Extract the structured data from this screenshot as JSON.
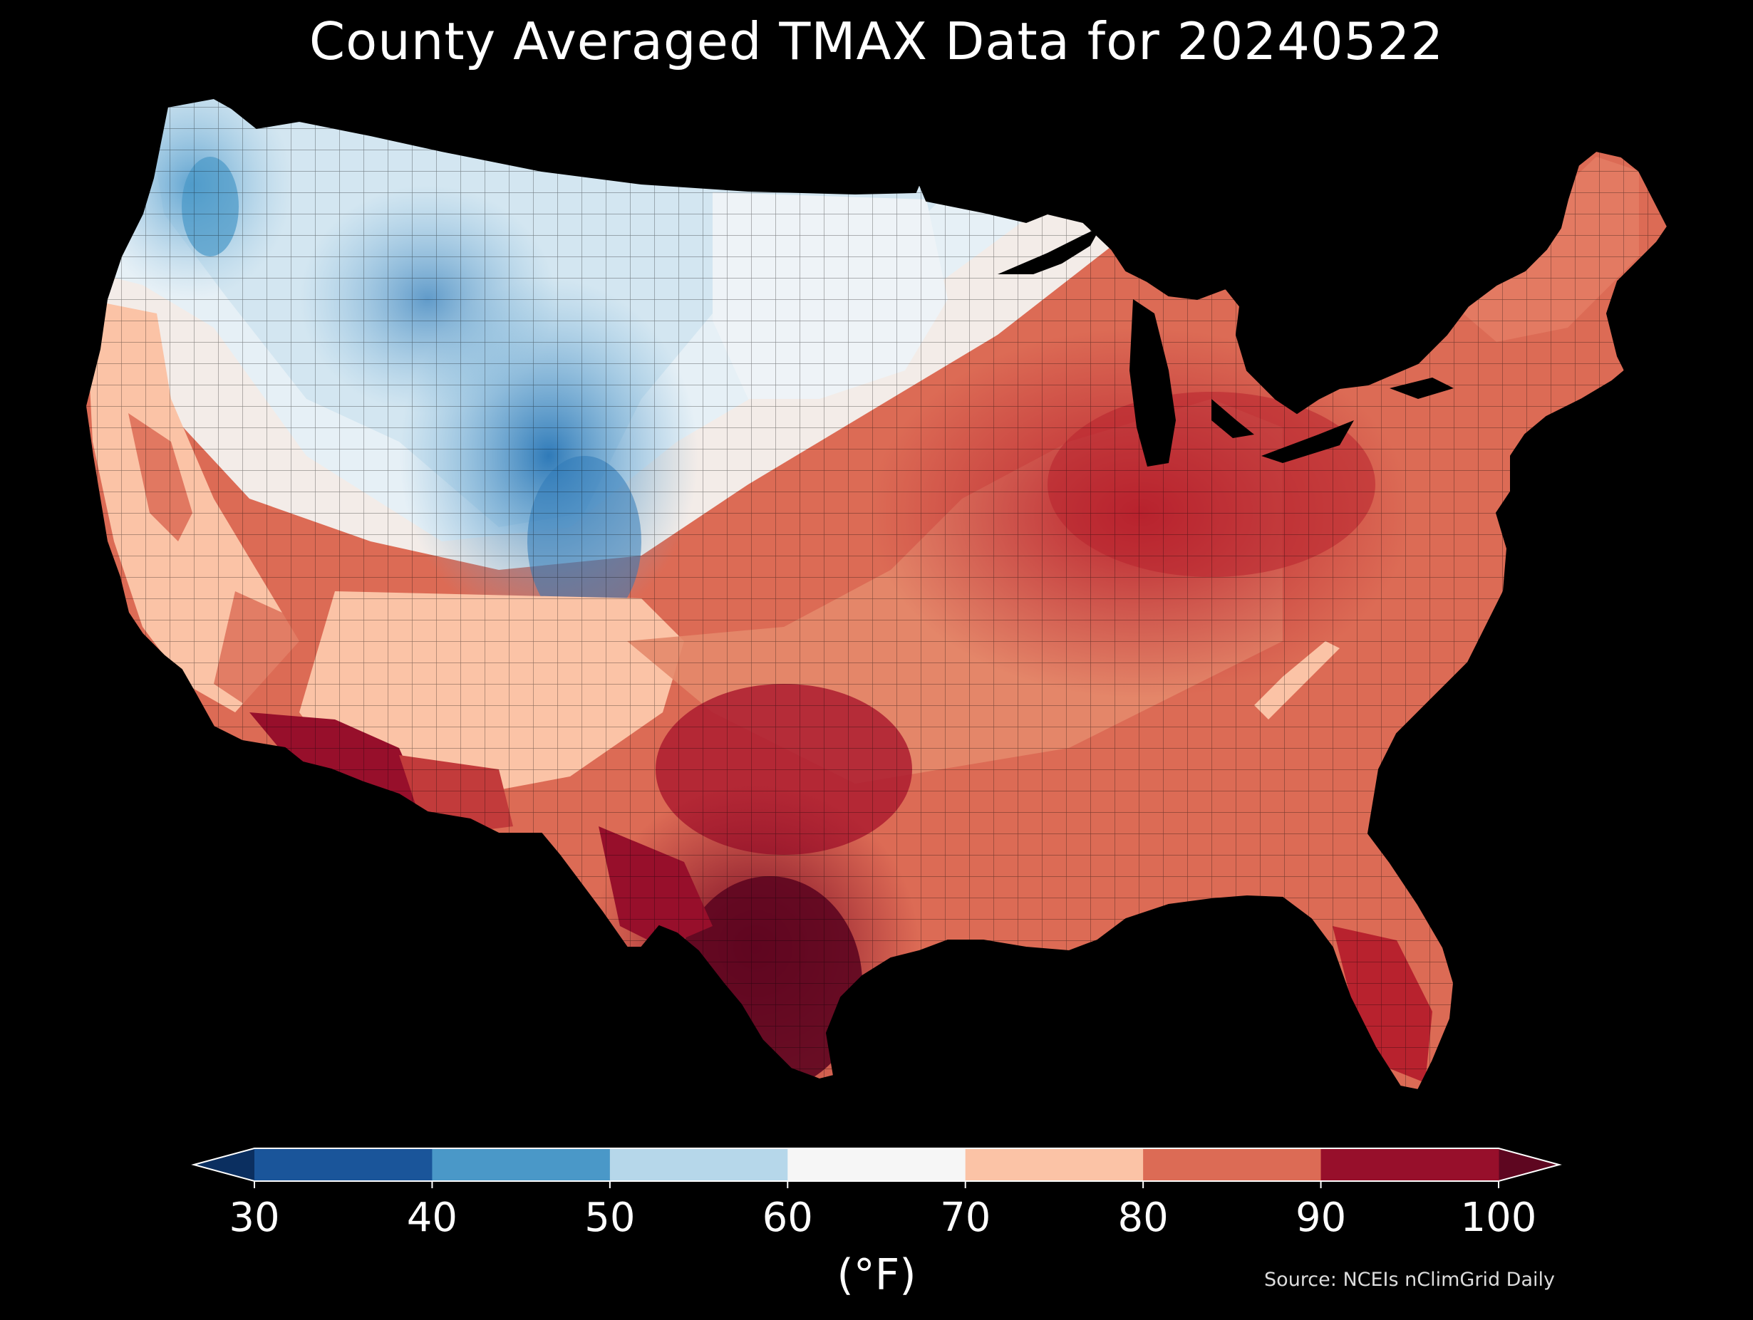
{
  "title": "County Averaged TMAX Data for 20240522",
  "source": "Source: NCEIs nClimGrid Daily",
  "colorbar": {
    "unit_label": "(°F)",
    "ticks": [
      "30",
      "40",
      "50",
      "60",
      "70",
      "80",
      "90",
      "100"
    ],
    "bins": [
      {
        "range": [
          30,
          40
        ],
        "color": "#1a559a"
      },
      {
        "range": [
          40,
          50
        ],
        "color": "#4a98c8"
      },
      {
        "range": [
          50,
          60
        ],
        "color": "#b6d7ea"
      },
      {
        "range": [
          60,
          70
        ],
        "color": "#f6f6f6"
      },
      {
        "range": [
          70,
          80
        ],
        "color": "#fbc3a6"
      },
      {
        "range": [
          80,
          90
        ],
        "color": "#dc6b55"
      },
      {
        "range": [
          90,
          100
        ],
        "color": "#970f2b"
      }
    ],
    "under_color": "#0b2f60",
    "over_color": "#5e0620"
  },
  "map": {
    "region": "Contiguous United States",
    "variable": "TMAX",
    "date": "20240522",
    "background": "#000000",
    "regional_pattern": [
      {
        "region": "Pacific Northwest",
        "tmax_range_F": [
          45,
          60
        ]
      },
      {
        "region": "Northern Rockies / Wyoming / Colorado",
        "tmax_range_F": [
          40,
          55
        ]
      },
      {
        "region": "Northern Plains / Upper Midwest",
        "tmax_range_F": [
          55,
          70
        ]
      },
      {
        "region": "California Central Valley",
        "tmax_range_F": [
          80,
          90
        ]
      },
      {
        "region": "Desert Southwest",
        "tmax_range_F": [
          90,
          100
        ]
      },
      {
        "region": "South Texas",
        "tmax_range_F": [
          95,
          105
        ]
      },
      {
        "region": "Ohio Valley / Midwest",
        "tmax_range_F": [
          85,
          90
        ]
      },
      {
        "region": "Southeast",
        "tmax_range_F": [
          80,
          90
        ]
      },
      {
        "region": "Northeast / New England",
        "tmax_range_F": [
          75,
          85
        ]
      },
      {
        "region": "South Florida",
        "tmax_range_F": [
          88,
          95
        ]
      }
    ]
  }
}
